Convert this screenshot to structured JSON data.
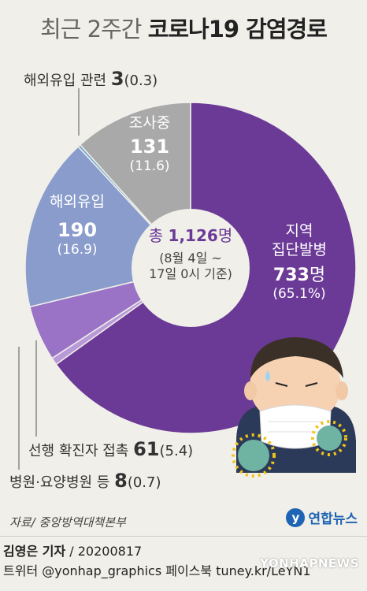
{
  "title": {
    "light": "최근 2주간",
    "bold": "코로나19 감염경로"
  },
  "chart_data": {
    "type": "pie",
    "title": "최근 2주간 코로나19 감염경로",
    "total_label": "총",
    "total_value": "1,126",
    "total_unit": "명",
    "period": [
      "(8월 4일 ~",
      "17일 0시 기준)"
    ],
    "slices": [
      {
        "name": "지역 집단발병",
        "line1": "지역",
        "line2": "집단발병",
        "value": 733,
        "value_text": "733",
        "unit": "명",
        "pct": 65.1,
        "pct_text": "(65.1%)",
        "color": "#6b3a96"
      },
      {
        "name": "병원·요양병원 등",
        "value": 8,
        "value_text": "8",
        "pct": 0.7,
        "pct_text": "(0.7)",
        "color": "#b89ad8"
      },
      {
        "name": "선행 확진자 접촉",
        "value": 61,
        "value_text": "61",
        "pct": 5.4,
        "pct_text": "(5.4)",
        "color": "#9a73c6"
      },
      {
        "name": "해외유입",
        "value": 190,
        "value_text": "190",
        "pct": 16.9,
        "pct_text": "(16.9)",
        "color": "#8a9ccc"
      },
      {
        "name": "해외유입 관련",
        "value": 3,
        "value_text": "3",
        "pct": 0.3,
        "pct_text": "(0.3)",
        "color": "#6fa8d0"
      },
      {
        "name": "조사중",
        "value": 131,
        "value_text": "131",
        "pct": 11.6,
        "pct_text": "(11.6)",
        "color": "#a9a9a9"
      }
    ]
  },
  "footer": {
    "source": "자료/ 중앙방역대책본부",
    "logo_mark": "y",
    "logo_text": "연합뉴스",
    "reporter": "김영은 기자",
    "date": "/ 20200817",
    "social": "트위터 @yonhap_graphics  페이스북 tuney.kr/LeYN1",
    "watermark": "YONHAPNEWS"
  },
  "colors": {
    "background": "#f0efe9",
    "donut_hole": "#f0efe9"
  }
}
